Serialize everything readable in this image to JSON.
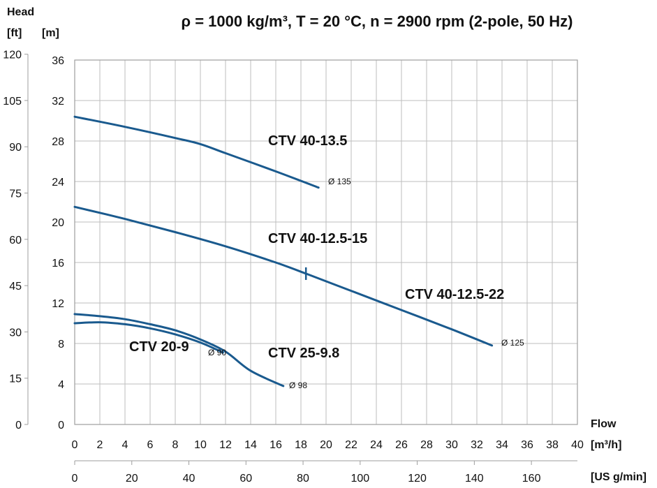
{
  "chart_data": {
    "type": "line",
    "title": "ρ = 1000 kg/m³, T = 20 °C, n = 2900 rpm (2-pole, 50 Hz)",
    "y_axis": {
      "label": "Head",
      "unit_m": "[m]",
      "unit_ft": "[ft]",
      "ylim_m": [
        0,
        36
      ],
      "ticks_m": [
        0,
        4,
        8,
        12,
        16,
        20,
        24,
        28,
        32,
        36
      ],
      "ylim_ft": [
        0,
        120
      ],
      "ticks_ft": [
        0,
        15,
        30,
        45,
        60,
        75,
        90,
        105,
        120
      ]
    },
    "x_axis": {
      "label": "Flow",
      "unit_m3h": "[m³/h]",
      "unit_usgpm": "[US g/min]",
      "xlim_m3h": [
        0,
        40
      ],
      "ticks_m3h": [
        0,
        2,
        4,
        6,
        8,
        10,
        12,
        14,
        16,
        18,
        20,
        22,
        24,
        26,
        28,
        30,
        32,
        34,
        36,
        38,
        40
      ],
      "ticks_usgpm": [
        0,
        20,
        40,
        60,
        80,
        100,
        120,
        140,
        160
      ]
    },
    "grid": true,
    "line_color": "#1a5a8e",
    "series": [
      {
        "name": "CTV 40-13.5",
        "diameter": "Ø 135",
        "x": [
          0,
          4,
          8,
          10,
          12,
          16,
          19.4
        ],
        "y": [
          30.4,
          29.4,
          28.3,
          27.7,
          26.8,
          25.0,
          23.4
        ]
      },
      {
        "name": "CTV 40-12.5-15",
        "x": [
          0,
          4,
          8,
          12,
          16,
          18.4
        ],
        "y": [
          21.5,
          20.3,
          19.0,
          17.6,
          16.0,
          14.9
        ]
      },
      {
        "name": "CTV 40-12.5-22",
        "diameter": "Ø 125",
        "x": [
          18.4,
          22,
          26,
          30,
          33.2
        ],
        "y": [
          14.9,
          13.2,
          11.3,
          9.4,
          7.8
        ]
      },
      {
        "name": "CTV 20-9",
        "diameter": "Ø 90",
        "x": [
          0,
          2,
          4,
          6,
          8,
          10,
          11.8
        ],
        "y": [
          10.0,
          10.1,
          9.9,
          9.5,
          8.9,
          8.1,
          7.1
        ]
      },
      {
        "name": "CTV 25-9.8",
        "diameter": "Ø 98",
        "x": [
          0,
          2,
          4,
          6,
          8,
          10,
          12,
          14,
          16.6
        ],
        "y": [
          10.9,
          10.7,
          10.4,
          9.9,
          9.3,
          8.4,
          7.2,
          5.3,
          3.8
        ]
      }
    ],
    "marker": {
      "x": 18.4,
      "y": 14.9
    }
  }
}
